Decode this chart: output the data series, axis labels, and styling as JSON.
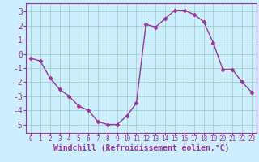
{
  "x": [
    0,
    1,
    2,
    3,
    4,
    5,
    6,
    7,
    8,
    9,
    10,
    11,
    12,
    13,
    14,
    15,
    16,
    17,
    18,
    19,
    20,
    21,
    22,
    23
  ],
  "y": [
    -0.3,
    -0.5,
    -1.7,
    -2.5,
    -3.0,
    -3.7,
    -4.0,
    -4.8,
    -5.0,
    -5.0,
    -4.4,
    -3.5,
    2.1,
    1.9,
    2.5,
    3.1,
    3.1,
    2.8,
    2.3,
    0.8,
    -1.1,
    -1.1,
    -2.0,
    -2.7
  ],
  "line_color": "#993399",
  "marker": "D",
  "markersize": 2.5,
  "linewidth": 1.0,
  "bg_color": "#cceeff",
  "grid_color": "#99ccbb",
  "xlabel": "Windchill (Refroidissement éolien,°C)",
  "xlabel_color": "#993399",
  "xlabel_fontsize": 7,
  "tick_color": "#993399",
  "ytick_fontsize": 7,
  "xtick_fontsize": 5.5,
  "ytick_values": [
    -5,
    -4,
    -3,
    -2,
    -1,
    0,
    1,
    2,
    3
  ],
  "xtick_values": [
    0,
    1,
    2,
    3,
    4,
    5,
    6,
    7,
    8,
    9,
    10,
    11,
    12,
    13,
    14,
    15,
    16,
    17,
    18,
    19,
    20,
    21,
    22,
    23
  ],
  "ylim": [
    -5.6,
    3.6
  ],
  "xlim": [
    -0.5,
    23.5
  ]
}
